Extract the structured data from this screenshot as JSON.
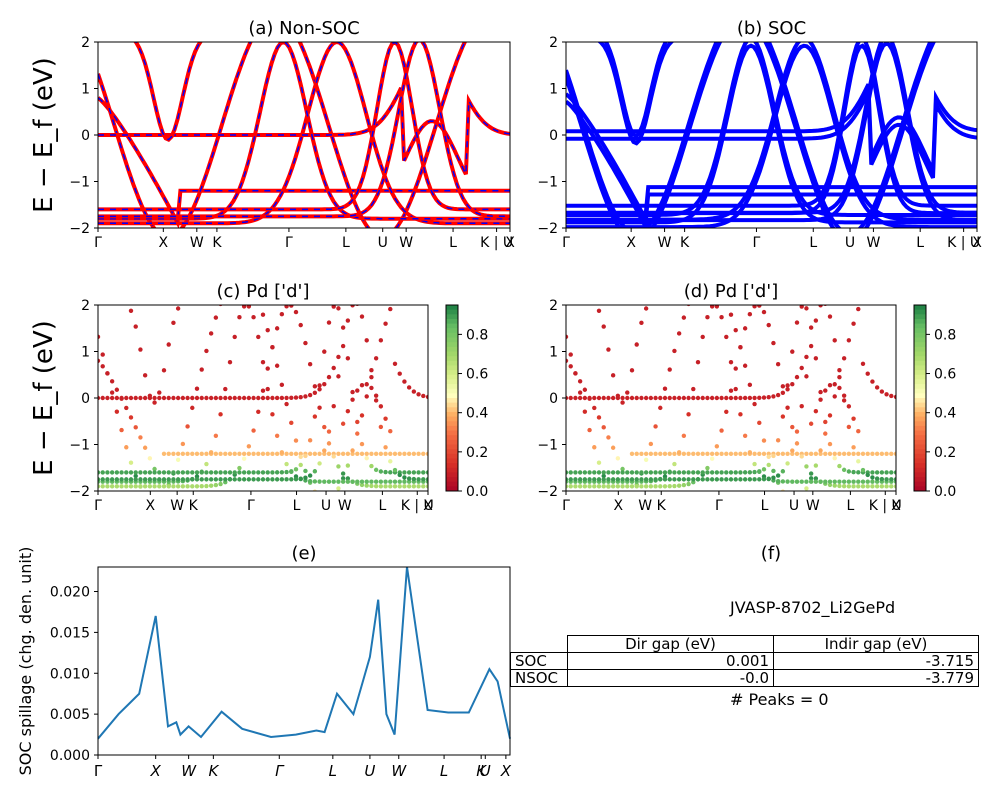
{
  "panels": {
    "a": {
      "title": "(a) Non-SOC"
    },
    "b": {
      "title": "(b) SOC"
    },
    "c": {
      "title": "(c)  Pd ['d']"
    },
    "d": {
      "title": "(d) Pd ['d']"
    },
    "e": {
      "title": "(e)"
    },
    "f": {
      "title": "(f)"
    }
  },
  "ylabel_band": "E − E_f (eV)",
  "ylabel_spillage": "SOC spillage (chg. den. unit)",
  "colorbar_ticks": [
    "0.0",
    "0.2",
    "0.4",
    "0.6",
    "0.8"
  ],
  "band_yticks": [
    "−2",
    "−1",
    "0",
    "1",
    "2"
  ],
  "kpath_labels": [
    "Γ",
    "X",
    "W",
    "K",
    "Γ",
    "L",
    "U",
    "W",
    "L",
    "K | U",
    "X"
  ],
  "spillage_yticks": [
    "0.000",
    "0.005",
    "0.010",
    "0.015",
    "0.020"
  ],
  "spillage_xlabels": [
    "Γ",
    "X",
    "W",
    "K",
    "Γ",
    "L",
    "U",
    "W",
    "L",
    "K",
    "U",
    "X"
  ],
  "table": {
    "jid": "JVASP-8702_Li2GePd",
    "headers": [
      "Dir gap (eV)",
      "Indir gap (eV)"
    ],
    "rows": [
      {
        "label": "SOC",
        "dir": "0.001",
        "indir": "-3.715"
      },
      {
        "label": "NSOC",
        "dir": "-0.0",
        "indir": "-3.779"
      }
    ],
    "peaks": "# Peaks = 0"
  },
  "colors": {
    "nonsoc_line": "#ff0000",
    "nonsoc_dash": "#0000ff",
    "soc_line": "#0000ff",
    "spillage_line": "#1f77b4"
  },
  "chart_data": [
    {
      "type": "line",
      "panel": "e",
      "ylabel": "SOC spillage (chg. den. unit)",
      "ylim": [
        0,
        0.023
      ],
      "x": [
        0,
        0.05,
        0.1,
        0.14,
        0.17,
        0.19,
        0.2,
        0.22,
        0.25,
        0.3,
        0.35,
        0.42,
        0.48,
        0.53,
        0.55,
        0.58,
        0.62,
        0.64,
        0.66,
        0.68,
        0.7,
        0.72,
        0.75,
        0.8,
        0.85,
        0.9,
        0.95,
        0.97,
        1.0
      ],
      "values": [
        0.002,
        0.005,
        0.0075,
        0.017,
        0.0035,
        0.004,
        0.0025,
        0.0035,
        0.0022,
        0.0053,
        0.0032,
        0.0022,
        0.0025,
        0.003,
        0.0028,
        0.0075,
        0.005,
        0.0085,
        0.012,
        0.019,
        0.005,
        0.0025,
        0.023,
        0.0055,
        0.0052,
        0.0052,
        0.0105,
        0.009,
        0.002
      ]
    }
  ]
}
